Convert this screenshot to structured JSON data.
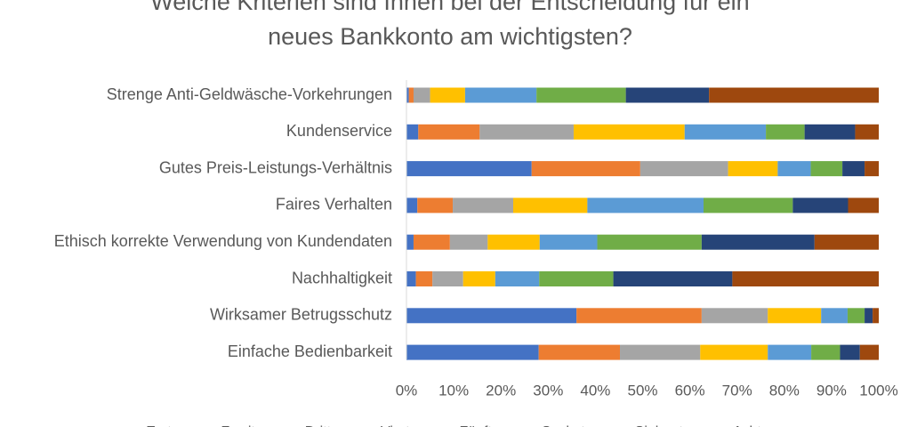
{
  "chart_data": {
    "type": "bar",
    "orientation": "horizontal",
    "stacked": "percent",
    "title_lines": [
      "Welche Kriterien sind Ihnen bei der Entscheidung für ein",
      "neues Bankkonto am wichtigsten?"
    ],
    "categories": [
      "Strenge Anti-Geldwäsche-Vorkehrungen",
      "Kundenservice",
      "Gutes Preis-Leistungs-Verhältnis",
      "Faires Verhalten",
      "Ethisch korrekte Verwendung von Kundendaten",
      "Nachhaltigkeit",
      "Wirksamer Betrugsschutz",
      "Einfache Bedienbarkeit"
    ],
    "series": [
      {
        "name": "Erste",
        "color": "#4472C4",
        "values": [
          0.5,
          2.5,
          26.5,
          2.3,
          1.5,
          2,
          36,
          28
        ]
      },
      {
        "name": "Zweite",
        "color": "#ED7D31",
        "values": [
          1,
          13,
          23,
          7.5,
          7.7,
          3.5,
          26.5,
          17.2
        ]
      },
      {
        "name": "Dritte",
        "color": "#A5A5A5",
        "values": [
          3.5,
          19.9,
          18.6,
          12.8,
          8,
          6.5,
          14,
          17
        ]
      },
      {
        "name": "Vierte",
        "color": "#FFC000",
        "values": [
          7.4,
          23.5,
          10.5,
          15.7,
          11,
          6.8,
          11.3,
          14.3
        ]
      },
      {
        "name": "Fünfte",
        "color": "#5B9BD5",
        "values": [
          15.1,
          17.2,
          7,
          24.6,
          12.2,
          9.3,
          5.6,
          9.2
        ]
      },
      {
        "name": "Sechste",
        "color": "#70AD47",
        "values": [
          18.9,
          8.2,
          6.7,
          18.9,
          22.1,
          15.7,
          3.6,
          6.1
        ]
      },
      {
        "name": "Siebente",
        "color": "#264478",
        "values": [
          17.6,
          10.7,
          4.7,
          11.7,
          23.9,
          25.2,
          1.7,
          4.2
        ]
      },
      {
        "name": "Achte",
        "color": "#9E480E",
        "values": [
          35.9,
          5,
          3,
          6.5,
          13.6,
          31,
          1.3,
          4
        ]
      }
    ],
    "xlim": [
      0,
      100
    ],
    "xticks": [
      "0%",
      "10%",
      "20%",
      "30%",
      "40%",
      "50%",
      "60%",
      "70%",
      "80%",
      "90%",
      "100%"
    ],
    "legend_position": "bottom",
    "gridlines": false
  }
}
